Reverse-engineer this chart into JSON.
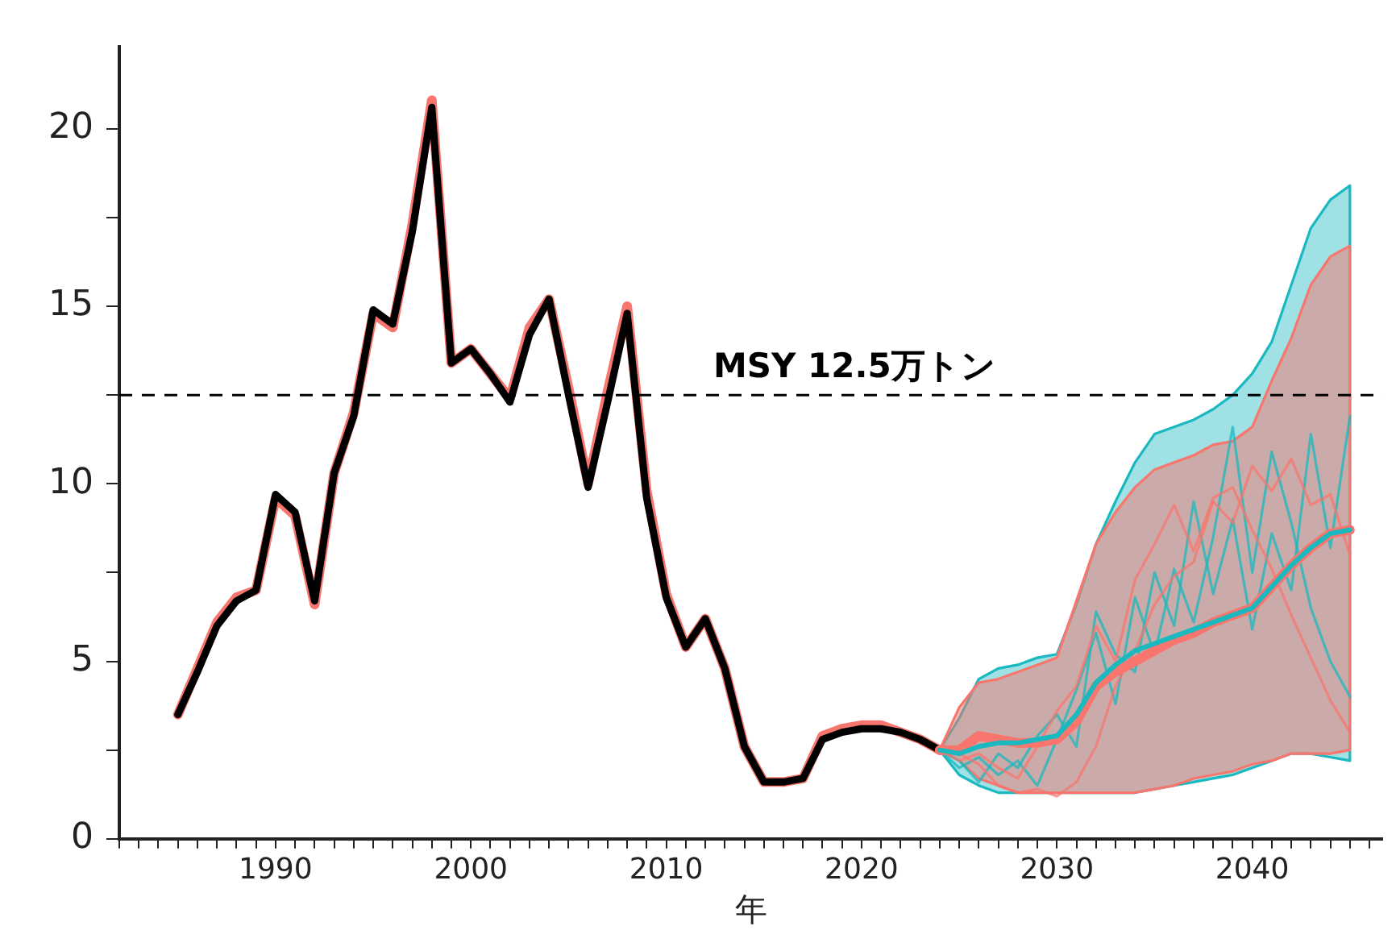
{
  "chart_data": {
    "type": "line",
    "xlabel": "年",
    "xlim": [
      1982,
      2046.7
    ],
    "ylim": [
      0,
      22.3
    ],
    "xticks": [
      {
        "value": 1982,
        "label": null
      },
      {
        "value": 1983,
        "label": null
      },
      {
        "value": 1984,
        "label": null
      },
      {
        "value": 1985,
        "label": null
      },
      {
        "value": 1986,
        "label": null
      },
      {
        "value": 1987,
        "label": null
      },
      {
        "value": 1988,
        "label": null
      },
      {
        "value": 1989,
        "label": null
      },
      1990,
      {
        "value": 1991,
        "label": null
      },
      {
        "value": 1992,
        "label": null
      },
      {
        "value": 1993,
        "label": null
      },
      {
        "value": 1994,
        "label": null
      },
      {
        "value": 1995,
        "label": null
      },
      {
        "value": 1996,
        "label": null
      },
      {
        "value": 1997,
        "label": null
      },
      {
        "value": 1998,
        "label": null
      },
      {
        "value": 1999,
        "label": null
      },
      2000,
      {
        "value": 2001,
        "label": null
      },
      {
        "value": 2002,
        "label": null
      },
      {
        "value": 2003,
        "label": null
      },
      {
        "value": 2004,
        "label": null
      },
      {
        "value": 2005,
        "label": null
      },
      {
        "value": 2006,
        "label": null
      },
      {
        "value": 2007,
        "label": null
      },
      {
        "value": 2008,
        "label": null
      },
      {
        "value": 2009,
        "label": null
      },
      2010,
      {
        "value": 2011,
        "label": null
      },
      {
        "value": 2012,
        "label": null
      },
      {
        "value": 2013,
        "label": null
      },
      {
        "value": 2014,
        "label": null
      },
      {
        "value": 2015,
        "label": null
      },
      {
        "value": 2016,
        "label": null
      },
      {
        "value": 2017,
        "label": null
      },
      {
        "value": 2018,
        "label": null
      },
      {
        "value": 2019,
        "label": null
      },
      2020,
      {
        "value": 2021,
        "label": null
      },
      {
        "value": 2022,
        "label": null
      },
      {
        "value": 2023,
        "label": null
      },
      {
        "value": 2024,
        "label": null
      },
      {
        "value": 2025,
        "label": null
      },
      {
        "value": 2026,
        "label": null
      },
      {
        "value": 2027,
        "label": null
      },
      {
        "value": 2028,
        "label": null
      },
      {
        "value": 2029,
        "label": null
      },
      2030,
      {
        "value": 2031,
        "label": null
      },
      {
        "value": 2032,
        "label": null
      },
      {
        "value": 2033,
        "label": null
      },
      {
        "value": 2034,
        "label": null
      },
      {
        "value": 2035,
        "label": null
      },
      {
        "value": 2036,
        "label": null
      },
      {
        "value": 2037,
        "label": null
      },
      {
        "value": 2038,
        "label": null
      },
      {
        "value": 2039,
        "label": null
      },
      2040,
      {
        "value": 2041,
        "label": null
      },
      {
        "value": 2042,
        "label": null
      },
      {
        "value": 2043,
        "label": null
      },
      {
        "value": 2044,
        "label": null
      },
      {
        "value": 2045,
        "label": null
      },
      {
        "value": 2046,
        "label": null
      }
    ],
    "yticks": [
      0,
      {
        "value": 2.5,
        "label": null
      },
      5,
      {
        "value": 7.5,
        "label": null
      },
      10,
      {
        "value": 12.5,
        "label": null
      },
      15,
      {
        "value": 17.5,
        "label": null
      },
      20
    ],
    "marker": "none",
    "line_style": "solid",
    "ref_lines": [
      {
        "axis": "y",
        "value": 12.5,
        "label": "MSY 12.5万トン",
        "color": "#000000",
        "line_style": "dashed"
      }
    ],
    "series": [
      {
        "color": "#f8766d",
        "x": [
          1985,
          1986,
          1987,
          1988,
          1989,
          1990,
          1991,
          1992,
          1993,
          1994,
          1995,
          1996,
          1997,
          1998,
          1999,
          2000,
          2001,
          2002,
          2003,
          2004,
          2005,
          2006,
          2007,
          2008,
          2009,
          2010,
          2011,
          2012,
          2013,
          2014,
          2015,
          2016,
          2017,
          2018,
          2019,
          2020,
          2021,
          2022,
          2023,
          2024
        ],
        "values": [
          3.5,
          4.8,
          6.1,
          6.8,
          7.0,
          9.6,
          9.1,
          6.6,
          10.3,
          12.0,
          14.8,
          14.4,
          17.3,
          20.8,
          13.4,
          13.8,
          13.1,
          12.4,
          14.4,
          15.2,
          12.7,
          10.0,
          12.6,
          15.0,
          9.8,
          6.9,
          5.4,
          6.2,
          4.8,
          2.6,
          1.6,
          1.6,
          1.7,
          2.9,
          3.1,
          3.2,
          3.2,
          3.0,
          2.8,
          2.5
        ]
      },
      {
        "color": "#000000",
        "x": [
          1985,
          1986,
          1987,
          1988,
          1989,
          1990,
          1991,
          1992,
          1993,
          1994,
          1995,
          1996,
          1997,
          1998,
          1999,
          2000,
          2001,
          2002,
          2003,
          2004,
          2005,
          2006,
          2007,
          2008,
          2009,
          2010,
          2011,
          2012,
          2013,
          2014,
          2015,
          2016,
          2017,
          2018,
          2019,
          2020,
          2021,
          2022,
          2023,
          2024
        ],
        "values": [
          3.5,
          4.7,
          6.0,
          6.7,
          7.0,
          9.7,
          9.2,
          6.7,
          10.3,
          11.9,
          14.9,
          14.5,
          17.1,
          20.6,
          13.4,
          13.8,
          13.1,
          12.3,
          14.2,
          15.2,
          12.5,
          9.9,
          12.3,
          14.8,
          9.6,
          6.8,
          5.4,
          6.2,
          4.8,
          2.6,
          1.6,
          1.6,
          1.7,
          2.8,
          3.0,
          3.1,
          3.1,
          3.0,
          2.8,
          2.5
        ]
      },
      {
        "color": "#1ab8bf",
        "x": [
          2024,
          2025,
          2026,
          2027,
          2028,
          2029,
          2030,
          2031,
          2032,
          2033,
          2034,
          2035,
          2036,
          2037,
          2038,
          2039,
          2040,
          2041,
          2042,
          2043,
          2044,
          2045
        ],
        "values": [
          2.5,
          2.4,
          2.6,
          2.7,
          2.7,
          2.8,
          2.9,
          3.5,
          4.4,
          4.9,
          5.3,
          5.5,
          5.7,
          5.9,
          6.1,
          6.3,
          6.5,
          7.1,
          7.7,
          8.2,
          8.6,
          8.7
        ],
        "lower": [
          2.5,
          1.8,
          1.5,
          1.3,
          1.3,
          1.3,
          1.3,
          1.3,
          1.3,
          1.3,
          1.3,
          1.4,
          1.5,
          1.6,
          1.7,
          1.8,
          2.0,
          2.2,
          2.4,
          2.4,
          2.3,
          2.2
        ],
        "upper": [
          2.5,
          3.4,
          4.5,
          4.8,
          4.9,
          5.1,
          5.2,
          6.6,
          8.3,
          9.5,
          10.6,
          11.4,
          11.6,
          11.8,
          12.1,
          12.5,
          13.1,
          14.0,
          15.6,
          17.2,
          18.0,
          18.4
        ]
      },
      {
        "color": "#f8766d",
        "x": [
          2024,
          2025,
          2026,
          2027,
          2028,
          2029,
          2030,
          2031,
          2032,
          2033,
          2034,
          2035,
          2036,
          2037,
          2038,
          2039,
          2040,
          2041,
          2042,
          2043,
          2044,
          2045
        ],
        "values": [
          2.5,
          2.5,
          2.9,
          2.8,
          2.7,
          2.7,
          2.8,
          3.3,
          4.3,
          4.7,
          5.0,
          5.3,
          5.6,
          5.8,
          6.1,
          6.3,
          6.5,
          7.1,
          7.7,
          8.2,
          8.6,
          8.7
        ],
        "lower": [
          2.5,
          2.2,
          1.7,
          1.5,
          1.3,
          1.3,
          1.3,
          1.3,
          1.3,
          1.3,
          1.3,
          1.4,
          1.5,
          1.7,
          1.8,
          1.9,
          2.1,
          2.2,
          2.4,
          2.4,
          2.4,
          2.5
        ],
        "upper": [
          2.5,
          3.7,
          4.4,
          4.5,
          4.7,
          4.9,
          5.1,
          6.7,
          8.3,
          9.2,
          9.9,
          10.4,
          10.6,
          10.8,
          11.1,
          11.2,
          11.6,
          12.9,
          14.1,
          15.6,
          16.4,
          16.7
        ]
      },
      {
        "color": "#1ab8bf",
        "x": [
          2024,
          2025,
          2026,
          2027,
          2028,
          2029,
          2030,
          2031,
          2032,
          2033,
          2034,
          2035,
          2036,
          2037,
          2038,
          2039,
          2040,
          2041,
          2042,
          2043,
          2044,
          2045
        ],
        "values": [
          2.5,
          2.0,
          2.3,
          1.8,
          2.2,
          1.5,
          2.8,
          4.2,
          5.8,
          3.8,
          6.8,
          5.2,
          7.6,
          6.1,
          8.5,
          11.6,
          7.5,
          10.9,
          8.9,
          6.5,
          5.0,
          4.0
        ]
      },
      {
        "color": "#1ab8bf",
        "x": [
          2024,
          2025,
          2026,
          2027,
          2028,
          2029,
          2030,
          2031,
          2032,
          2033,
          2034,
          2035,
          2036,
          2037,
          2038,
          2039,
          2040,
          2041,
          2042,
          2043,
          2044,
          2045
        ],
        "values": [
          2.5,
          2.2,
          1.6,
          2.4,
          2.0,
          2.9,
          3.5,
          2.6,
          6.4,
          5.2,
          4.7,
          7.5,
          6.0,
          9.5,
          6.9,
          9.0,
          5.9,
          8.6,
          7.0,
          11.4,
          8.2,
          11.9
        ]
      },
      {
        "color": "#f8766d",
        "x": [
          2024,
          2025,
          2026,
          2027,
          2028,
          2029,
          2030,
          2031,
          2032,
          2033,
          2034,
          2035,
          2036,
          2037,
          2038,
          2039,
          2040,
          2041,
          2042,
          2043,
          2044,
          2045
        ],
        "values": [
          2.5,
          2.2,
          2.4,
          2.0,
          1.7,
          2.6,
          3.6,
          4.3,
          6.0,
          5.0,
          7.3,
          8.3,
          9.4,
          8.1,
          9.6,
          9.9,
          8.7,
          7.6,
          6.3,
          5.1,
          3.9,
          3.0
        ]
      },
      {
        "color": "#f8766d",
        "x": [
          2024,
          2025,
          2026,
          2027,
          2028,
          2029,
          2030,
          2031,
          2032,
          2033,
          2034,
          2035,
          2036,
          2037,
          2038,
          2039,
          2040,
          2041,
          2042,
          2043,
          2044,
          2045
        ],
        "values": [
          2.5,
          2.4,
          2.1,
          1.5,
          1.3,
          1.4,
          1.2,
          1.6,
          2.6,
          4.3,
          5.3,
          6.6,
          7.4,
          7.8,
          9.5,
          8.9,
          10.5,
          9.8,
          10.7,
          9.4,
          9.7,
          8.0
        ]
      }
    ]
  }
}
